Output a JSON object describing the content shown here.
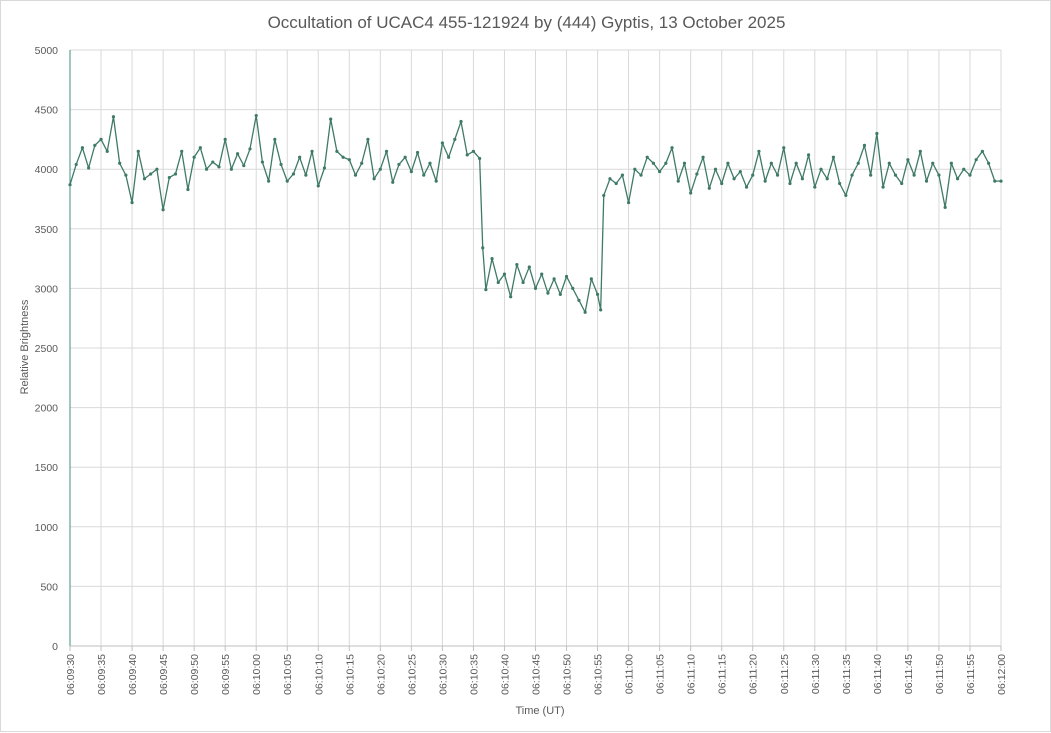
{
  "chart_data": {
    "type": "line",
    "title": "Occultation of UCAC4 455-121924 by (444) Gyptis, 13 October 2025",
    "xlabel": "Time (UT)",
    "ylabel": "Relative Brightness",
    "ylim": [
      0,
      5000
    ],
    "y_ticks": [
      "0",
      "500",
      "1000",
      "1500",
      "2000",
      "2500",
      "3000",
      "3500",
      "4000",
      "4500",
      "5000"
    ],
    "x_range": [
      "06:09:30",
      "06:12:00"
    ],
    "x_ticks": [
      "06:09:30",
      "06:09:35",
      "06:09:40",
      "06:09:45",
      "06:09:50",
      "06:09:55",
      "06:10:00",
      "06:10:05",
      "06:10:10",
      "06:10:15",
      "06:10:20",
      "06:10:25",
      "06:10:30",
      "06:10:35",
      "06:10:40",
      "06:10:45",
      "06:10:50",
      "06:10:55",
      "06:11:00",
      "06:11:05",
      "06:11:10",
      "06:11:15",
      "06:11:20",
      "06:11:25",
      "06:11:30",
      "06:11:35",
      "06:11:40",
      "06:11:45",
      "06:11:50",
      "06:11:55",
      "06:12:00"
    ],
    "grid": true,
    "legend": "none",
    "series": [
      {
        "color": "#3f7a68",
        "marker": "circle",
        "points": [
          [
            "06:09:30",
            3870
          ],
          [
            "06:09:31",
            4040
          ],
          [
            "06:09:32",
            4180
          ],
          [
            "06:09:33",
            4010
          ],
          [
            "06:09:34",
            4200
          ],
          [
            "06:09:35",
            4250
          ],
          [
            "06:09:36",
            4150
          ],
          [
            "06:09:37",
            4440
          ],
          [
            "06:09:38",
            4050
          ],
          [
            "06:09:39",
            3950
          ],
          [
            "06:09:40",
            3720
          ],
          [
            "06:09:41",
            4150
          ],
          [
            "06:09:42",
            3920
          ],
          [
            "06:09:43",
            3960
          ],
          [
            "06:09:44",
            4000
          ],
          [
            "06:09:45",
            3660
          ],
          [
            "06:09:46",
            3930
          ],
          [
            "06:09:47",
            3960
          ],
          [
            "06:09:48",
            4150
          ],
          [
            "06:09:49",
            3830
          ],
          [
            "06:09:50",
            4100
          ],
          [
            "06:09:51",
            4180
          ],
          [
            "06:09:52",
            4000
          ],
          [
            "06:09:53",
            4060
          ],
          [
            "06:09:54",
            4020
          ],
          [
            "06:09:55",
            4250
          ],
          [
            "06:09:56",
            4000
          ],
          [
            "06:09:57",
            4130
          ],
          [
            "06:09:58",
            4030
          ],
          [
            "06:09:59",
            4170
          ],
          [
            "06:10:00",
            4450
          ],
          [
            "06:10:01",
            4060
          ],
          [
            "06:10:02",
            3900
          ],
          [
            "06:10:03",
            4250
          ],
          [
            "06:10:04",
            4040
          ],
          [
            "06:10:05",
            3900
          ],
          [
            "06:10:06",
            3960
          ],
          [
            "06:10:07",
            4100
          ],
          [
            "06:10:08",
            3950
          ],
          [
            "06:10:09",
            4150
          ],
          [
            "06:10:10",
            3860
          ],
          [
            "06:10:11",
            4010
          ],
          [
            "06:10:12",
            4420
          ],
          [
            "06:10:13",
            4150
          ],
          [
            "06:10:14",
            4100
          ],
          [
            "06:10:15",
            4080
          ],
          [
            "06:10:16",
            3950
          ],
          [
            "06:10:17",
            4050
          ],
          [
            "06:10:18",
            4250
          ],
          [
            "06:10:19",
            3920
          ],
          [
            "06:10:20",
            4000
          ],
          [
            "06:10:21",
            4150
          ],
          [
            "06:10:22",
            3890
          ],
          [
            "06:10:23",
            4040
          ],
          [
            "06:10:24",
            4100
          ],
          [
            "06:10:25",
            3980
          ],
          [
            "06:10:26",
            4140
          ],
          [
            "06:10:27",
            3950
          ],
          [
            "06:10:28",
            4050
          ],
          [
            "06:10:29",
            3900
          ],
          [
            "06:10:30",
            4220
          ],
          [
            "06:10:31",
            4100
          ],
          [
            "06:10:32",
            4250
          ],
          [
            "06:10:33",
            4400
          ],
          [
            "06:10:34",
            4120
          ],
          [
            "06:10:35",
            4150
          ],
          [
            "06:10:36",
            4090
          ],
          [
            "06:10:36.5",
            3340
          ],
          [
            "06:10:37",
            2990
          ],
          [
            "06:10:38",
            3250
          ],
          [
            "06:10:39",
            3050
          ],
          [
            "06:10:40",
            3120
          ],
          [
            "06:10:41",
            2930
          ],
          [
            "06:10:42",
            3200
          ],
          [
            "06:10:43",
            3050
          ],
          [
            "06:10:44",
            3180
          ],
          [
            "06:10:45",
            3000
          ],
          [
            "06:10:46",
            3120
          ],
          [
            "06:10:47",
            2960
          ],
          [
            "06:10:48",
            3080
          ],
          [
            "06:10:49",
            2950
          ],
          [
            "06:10:50",
            3100
          ],
          [
            "06:10:51",
            3000
          ],
          [
            "06:10:52",
            2900
          ],
          [
            "06:10:53",
            2800
          ],
          [
            "06:10:54",
            3080
          ],
          [
            "06:10:55",
            2950
          ],
          [
            "06:10:55.5",
            2820
          ],
          [
            "06:10:56",
            3780
          ],
          [
            "06:10:57",
            3920
          ],
          [
            "06:10:58",
            3880
          ],
          [
            "06:10:59",
            3950
          ],
          [
            "06:11:00",
            3720
          ],
          [
            "06:11:01",
            4000
          ],
          [
            "06:11:02",
            3950
          ],
          [
            "06:11:03",
            4100
          ],
          [
            "06:11:04",
            4050
          ],
          [
            "06:11:05",
            3980
          ],
          [
            "06:11:06",
            4050
          ],
          [
            "06:11:07",
            4180
          ],
          [
            "06:11:08",
            3900
          ],
          [
            "06:11:09",
            4050
          ],
          [
            "06:11:10",
            3800
          ],
          [
            "06:11:11",
            3960
          ],
          [
            "06:11:12",
            4100
          ],
          [
            "06:11:13",
            3840
          ],
          [
            "06:11:14",
            4000
          ],
          [
            "06:11:15",
            3880
          ],
          [
            "06:11:16",
            4050
          ],
          [
            "06:11:17",
            3920
          ],
          [
            "06:11:18",
            3980
          ],
          [
            "06:11:19",
            3850
          ],
          [
            "06:11:20",
            3950
          ],
          [
            "06:11:21",
            4150
          ],
          [
            "06:11:22",
            3900
          ],
          [
            "06:11:23",
            4050
          ],
          [
            "06:11:24",
            3950
          ],
          [
            "06:11:25",
            4180
          ],
          [
            "06:11:26",
            3880
          ],
          [
            "06:11:27",
            4050
          ],
          [
            "06:11:28",
            3920
          ],
          [
            "06:11:29",
            4120
          ],
          [
            "06:11:30",
            3850
          ],
          [
            "06:11:31",
            4000
          ],
          [
            "06:11:32",
            3920
          ],
          [
            "06:11:33",
            4100
          ],
          [
            "06:11:34",
            3880
          ],
          [
            "06:11:35",
            3780
          ],
          [
            "06:11:36",
            3950
          ],
          [
            "06:11:37",
            4050
          ],
          [
            "06:11:38",
            4200
          ],
          [
            "06:11:39",
            3950
          ],
          [
            "06:11:40",
            4300
          ],
          [
            "06:11:41",
            3850
          ],
          [
            "06:11:42",
            4050
          ],
          [
            "06:11:43",
            3950
          ],
          [
            "06:11:44",
            3880
          ],
          [
            "06:11:45",
            4080
          ],
          [
            "06:11:46",
            3950
          ],
          [
            "06:11:47",
            4150
          ],
          [
            "06:11:48",
            3900
          ],
          [
            "06:11:49",
            4050
          ],
          [
            "06:11:50",
            3950
          ],
          [
            "06:11:51",
            3680
          ],
          [
            "06:11:52",
            4050
          ],
          [
            "06:11:53",
            3920
          ],
          [
            "06:11:54",
            4000
          ],
          [
            "06:11:55",
            3950
          ],
          [
            "06:11:56",
            4080
          ],
          [
            "06:11:57",
            4150
          ],
          [
            "06:11:58",
            4050
          ],
          [
            "06:11:59",
            3900
          ],
          [
            "06:12:00",
            3900
          ]
        ]
      }
    ]
  }
}
